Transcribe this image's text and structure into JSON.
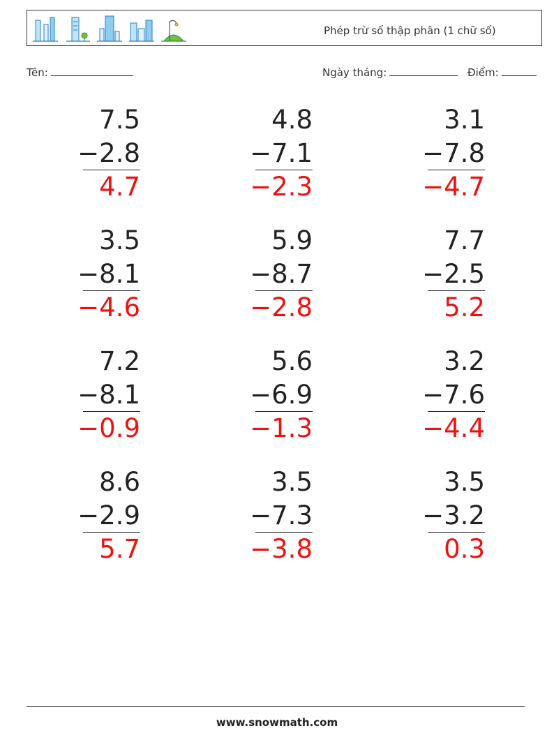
{
  "header": {
    "title": "Phép trừ số thập phân (1 chữ số)",
    "icons": [
      "skyscrapers-icon",
      "tower-with-tree-icon",
      "tall-tower-icon",
      "city-buildings-icon",
      "park-with-lamp-icon"
    ]
  },
  "fields": {
    "name_label": "Tên:",
    "date_label": "Ngày tháng:",
    "score_label": "Điểm:"
  },
  "problems": [
    {
      "a": "7.5",
      "b": "−2.8",
      "answer": "4.7"
    },
    {
      "a": "4.8",
      "b": "−7.1",
      "answer": "−2.3"
    },
    {
      "a": "3.1",
      "b": "−7.8",
      "answer": "−4.7"
    },
    {
      "a": "3.5",
      "b": "−8.1",
      "answer": "−4.6"
    },
    {
      "a": "5.9",
      "b": "−8.7",
      "answer": "−2.8"
    },
    {
      "a": "7.7",
      "b": "−2.5",
      "answer": "5.2"
    },
    {
      "a": "7.2",
      "b": "−8.1",
      "answer": "−0.9"
    },
    {
      "a": "5.6",
      "b": "−6.9",
      "answer": "−1.3"
    },
    {
      "a": "3.2",
      "b": "−7.6",
      "answer": "−4.4"
    },
    {
      "a": "8.6",
      "b": "−2.9",
      "answer": "5.7"
    },
    {
      "a": "3.5",
      "b": "−7.3",
      "answer": "−3.8"
    },
    {
      "a": "3.5",
      "b": "−3.2",
      "answer": "0.3"
    }
  ],
  "colors": {
    "answer": "#ee1111",
    "icon_blue": "#3a9ad9",
    "icon_green": "#6cc04a"
  },
  "footer": {
    "site": "www.snowmath.com"
  }
}
